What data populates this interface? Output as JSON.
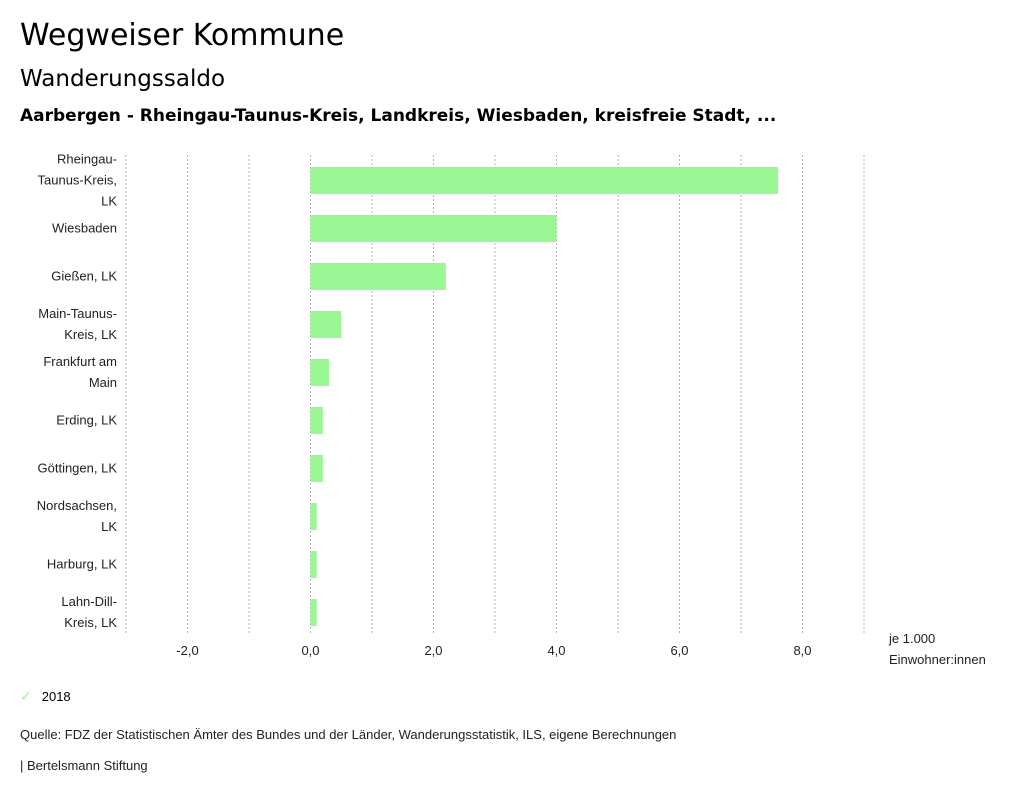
{
  "header": {
    "title": "Wegweiser Kommune",
    "subtitle": "Wanderungssaldo",
    "region": "Aarbergen - Rheingau-Taunus-Kreis, Landkreis, Wiesbaden, kreisfreie Stadt, ..."
  },
  "chart_data": {
    "type": "bar",
    "orientation": "horizontal",
    "categories": [
      [
        "Rheingau-",
        "Taunus-Kreis,",
        "LK"
      ],
      [
        "Wiesbaden"
      ],
      [
        "Gießen, LK"
      ],
      [
        "Main-Taunus-",
        "Kreis, LK"
      ],
      [
        "Frankfurt am",
        "Main"
      ],
      [
        "Erding, LK"
      ],
      [
        "Göttingen, LK"
      ],
      [
        "Nordsachsen,",
        "LK"
      ],
      [
        "Harburg, LK"
      ],
      [
        "Lahn-Dill-",
        "Kreis, LK"
      ]
    ],
    "series": [
      {
        "name": "2018",
        "color": "#99f793",
        "values": [
          7.6,
          4.0,
          2.2,
          0.5,
          0.3,
          0.2,
          0.2,
          0.1,
          0.1,
          0.1
        ]
      }
    ],
    "xlim": [
      -3,
      9
    ],
    "xticks": [
      -2,
      0,
      2,
      4,
      6,
      8
    ],
    "xtick_labels": [
      "-2,0",
      "0,0",
      "2,0",
      "4,0",
      "6,0",
      "8,0"
    ],
    "gridlines": [
      -3,
      -2,
      -1,
      0,
      1,
      2,
      3,
      4,
      5,
      6,
      7,
      8,
      9
    ],
    "xlabel": [
      "je 1.000",
      "Einwohner:innen"
    ],
    "grid": true,
    "legend_position": "bottom-left"
  },
  "legend": {
    "icon": "check-icon",
    "label": "2018"
  },
  "footer": {
    "source": "Quelle: FDZ der Statistischen Ämter des Bundes und der Länder, Wanderungsstatistik, ILS, eigene Berechnungen",
    "brand": "| Bertelsmann Stiftung"
  }
}
